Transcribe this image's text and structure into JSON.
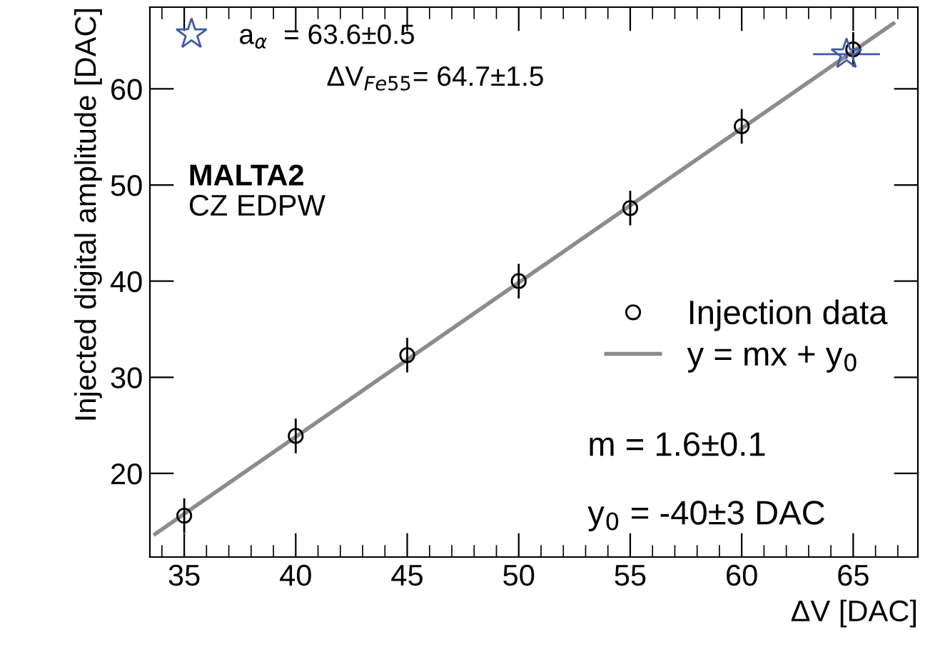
{
  "chart_data": {
    "type": "scatter",
    "xlabel": "ΔV [DAC]",
    "ylabel": "Injected digital amplitude [DAC]",
    "xlim": [
      33.46,
      67.9
    ],
    "ylim": [
      11.3,
      68.5
    ],
    "xticks": [
      35,
      40,
      45,
      50,
      55,
      60,
      65
    ],
    "yticks": [
      20,
      30,
      40,
      50,
      60
    ],
    "legend": "top left",
    "grid": false,
    "series": [
      {
        "name": "Injection data",
        "marker": "circle",
        "color": "#000000",
        "x": [
          35,
          40,
          45,
          50,
          55,
          60,
          65
        ],
        "values": [
          15.6,
          23.9,
          32.3,
          40.0,
          47.6,
          56.1,
          64.1
        ],
        "errors": [
          1.8,
          1.8,
          1.8,
          1.8,
          1.8,
          1.8,
          1.8
        ]
      },
      {
        "name": "y = mx + y$_{0}$",
        "type": "line",
        "marker": "none",
        "line_style": "solid",
        "color": "#8c8c8c",
        "x": [
          33.7,
          66.8
        ],
        "values": [
          13.7,
          66.8
        ]
      },
      {
        "name": "a$_{α}$  = 63.6±0.5",
        "marker": "star",
        "color": "#3f5aa8",
        "x": [
          64.7
        ],
        "values": [
          63.6
        ],
        "errors": [
          0.5
        ],
        "xerrors": [
          1.5
        ]
      }
    ],
    "annotations": [
      "ΔV$_{Fe55}$= 64.7±1.5",
      "MALTA2",
      "CZ EDPW",
      "m = 1.6±0.1",
      "y$_{0}$ = -40±3 DAC"
    ]
  }
}
